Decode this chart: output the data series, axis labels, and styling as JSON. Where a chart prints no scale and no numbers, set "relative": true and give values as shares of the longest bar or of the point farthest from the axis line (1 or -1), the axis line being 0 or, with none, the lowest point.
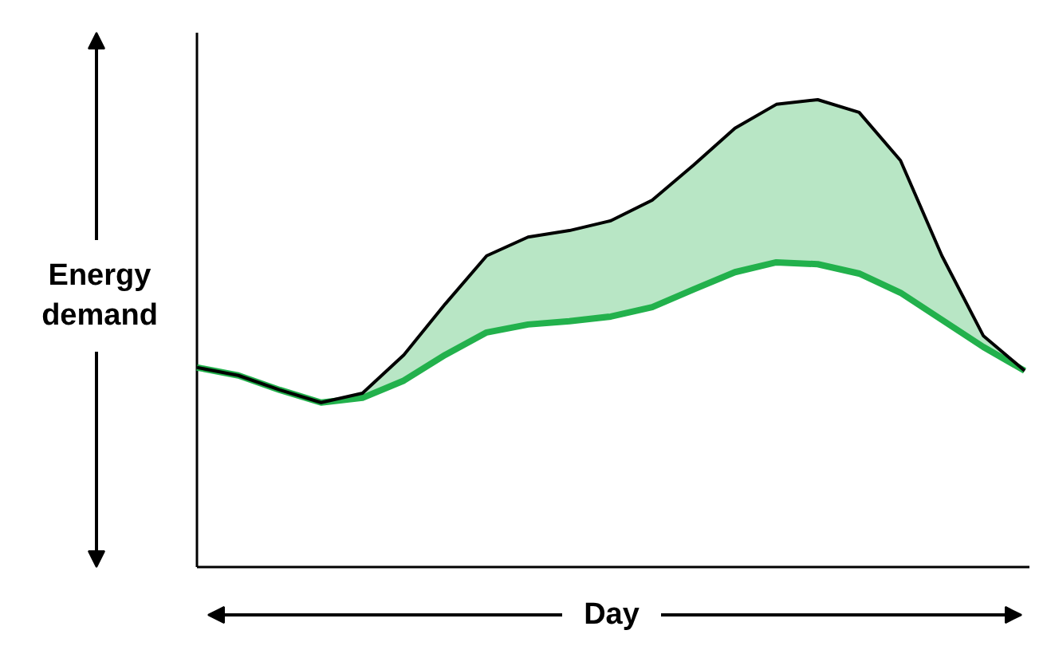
{
  "chart_data": {
    "type": "line",
    "relative": true,
    "xlabel": "Day",
    "ylabel": "Energy demand",
    "marker": "none",
    "line_style": "solid",
    "categories": [
      null,
      null,
      null,
      null,
      null,
      null,
      null,
      null,
      null,
      null,
      null,
      null,
      null,
      null,
      null,
      null,
      null,
      null,
      null,
      null,
      null
    ],
    "series": [
      {
        "color": "#22b14c",
        "values": [
          0.427,
          0.41,
          0.379,
          0.352,
          0.362,
          0.399,
          0.454,
          0.502,
          0.519,
          0.526,
          0.536,
          0.556,
          0.594,
          0.631,
          0.652,
          0.648,
          0.628,
          0.587,
          0.529,
          0.471,
          0.42
        ],
        "lower": [
          0.427,
          0.41,
          0.379,
          0.352,
          0.362,
          0.399,
          0.454,
          0.502,
          0.519,
          0.526,
          0.536,
          0.556,
          0.594,
          0.631,
          0.652,
          0.648,
          0.628,
          0.587,
          0.529,
          0.471,
          0.42
        ],
        "upper": [
          0.427,
          0.41,
          0.379,
          0.352,
          0.372,
          0.454,
          0.563,
          0.666,
          0.706,
          0.72,
          0.741,
          0.785,
          0.86,
          0.939,
          0.99,
          1.0,
          0.973,
          0.87,
          0.666,
          0.495,
          0.42
        ]
      },
      {
        "color": "#000000",
        "values": [
          0.427,
          0.41,
          0.379,
          0.352,
          0.372,
          0.454,
          0.563,
          0.666,
          0.706,
          0.72,
          0.741,
          0.785,
          0.86,
          0.939,
          0.99,
          1.0,
          0.973,
          0.87,
          0.666,
          0.495,
          0.42
        ]
      }
    ]
  }
}
